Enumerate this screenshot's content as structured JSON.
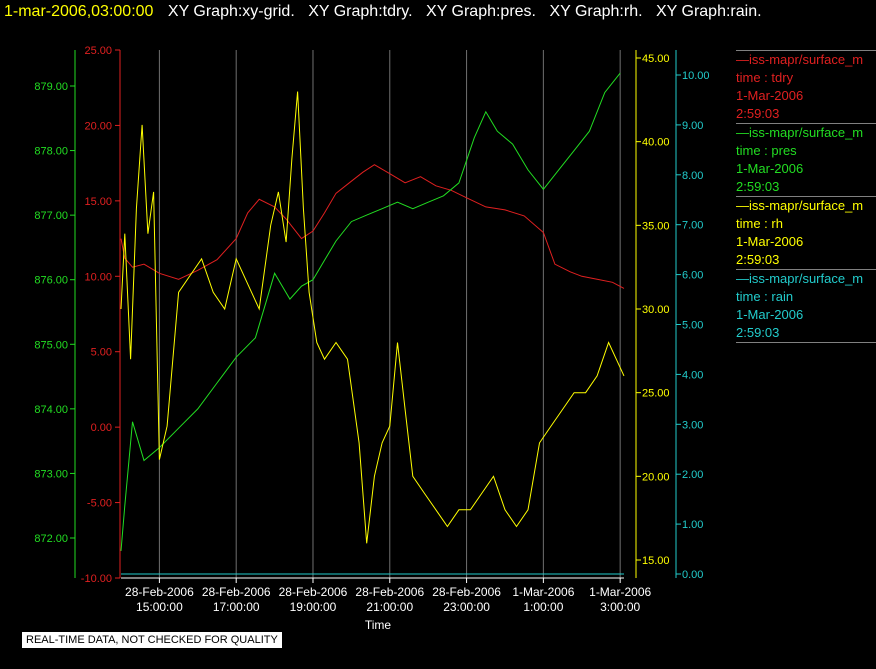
{
  "header": {
    "timestamp": "1-mar-2006,03:00:00",
    "titles": [
      "XY Graph:xy-grid.",
      "XY Graph:tdry.",
      "XY Graph:pres.",
      "XY Graph:rh.",
      "XY Graph:rain."
    ]
  },
  "legend": [
    {
      "name": "iss-mapr/surface_m",
      "field": "time : tdry",
      "date": "1-Mar-2006",
      "time": "2:59:03",
      "color": "#e02020"
    },
    {
      "name": "iss-mapr/surface_m",
      "field": "time : pres",
      "date": "1-Mar-2006",
      "time": "2:59:03",
      "color": "#22dd22"
    },
    {
      "name": "iss-mapr/surface_m",
      "field": "time : rh",
      "date": "1-Mar-2006",
      "time": "2:59:03",
      "color": "#ffff00"
    },
    {
      "name": "iss-mapr/surface_m",
      "field": "time : rain",
      "date": "1-Mar-2006",
      "time": "2:59:03",
      "color": "#22cccc"
    }
  ],
  "note": "REAL-TIME DATA, NOT CHECKED FOR QUALITY",
  "chart_data": {
    "type": "line",
    "xlabel": "Time",
    "x_ticks": [
      {
        "date": "28-Feb-2006",
        "time": "15:00:00"
      },
      {
        "date": "28-Feb-2006",
        "time": "17:00:00"
      },
      {
        "date": "28-Feb-2006",
        "time": "19:00:00"
      },
      {
        "date": "28-Feb-2006",
        "time": "21:00:00"
      },
      {
        "date": "28-Feb-2006",
        "time": "23:00:00"
      },
      {
        "date": "1-Mar-2006",
        "time": "1:00:00"
      },
      {
        "date": "1-Mar-2006",
        "time": "3:00:00"
      }
    ],
    "grid": "vertical",
    "axes": {
      "tdry": {
        "range": [
          -10,
          25
        ],
        "ticks": [
          "25.00",
          "20.00",
          "15.00",
          "10.00",
          "5.00",
          "0.00",
          "-5.00",
          "-10.00"
        ],
        "color": "#e02020"
      },
      "pres": {
        "range": [
          871.5,
          879.6
        ],
        "ticks": [
          "879.00",
          "878.00",
          "877.00",
          "876.00",
          "875.00",
          "874.00",
          "873.00",
          "872.00"
        ],
        "color": "#22dd22"
      },
      "rh": {
        "range": [
          14,
          45
        ],
        "ticks": [
          "45.00",
          "40.00",
          "35.00",
          "30.00",
          "25.00",
          "20.00",
          "15.00"
        ],
        "color": "#ffff00"
      },
      "rain": {
        "range": [
          0,
          10.5
        ],
        "ticks": [
          "10.00",
          "9.00",
          "8.00",
          "7.00",
          "6.00",
          "5.00",
          "4.00",
          "3.00",
          "2.00",
          "1.00",
          "0.00"
        ],
        "color": "#22cccc"
      }
    },
    "series": [
      {
        "key": "tdry",
        "color": "#e02020",
        "x_hours": [
          14.0,
          14.1,
          14.3,
          14.6,
          15.0,
          15.5,
          16.0,
          16.5,
          17.0,
          17.3,
          17.6,
          18.0,
          18.3,
          18.7,
          19.0,
          19.3,
          19.6,
          20.0,
          20.3,
          20.6,
          21.0,
          21.4,
          21.8,
          22.2,
          22.6,
          23.0,
          23.5,
          24.0,
          24.5,
          25.0,
          25.3,
          25.7,
          26.0,
          26.4,
          26.8,
          27.1
        ],
        "values": [
          12.5,
          11.2,
          10.6,
          10.8,
          10.2,
          9.8,
          10.4,
          11.1,
          12.5,
          14.2,
          15.1,
          14.6,
          13.8,
          12.5,
          13.0,
          14.2,
          15.5,
          16.3,
          16.9,
          17.4,
          16.8,
          16.2,
          16.6,
          16.0,
          15.7,
          15.2,
          14.6,
          14.4,
          14.0,
          12.9,
          10.8,
          10.3,
          10.0,
          9.8,
          9.6,
          9.2
        ]
      },
      {
        "key": "pres",
        "color": "#22dd22",
        "x_hours": [
          14.0,
          14.1,
          14.3,
          14.6,
          15.0,
          15.5,
          16.0,
          16.5,
          17.0,
          17.5,
          18.0,
          18.4,
          18.7,
          19.0,
          19.3,
          19.6,
          20.0,
          20.4,
          20.8,
          21.2,
          21.6,
          22.0,
          22.4,
          22.8,
          23.2,
          23.5,
          23.8,
          24.2,
          24.6,
          25.0,
          25.4,
          25.8,
          26.2,
          26.6,
          27.0
        ],
        "values": [
          871.8,
          872.5,
          873.8,
          873.2,
          873.4,
          873.7,
          874.0,
          874.4,
          874.8,
          875.1,
          876.1,
          875.7,
          875.9,
          876.0,
          876.3,
          876.6,
          876.9,
          877.0,
          877.1,
          877.2,
          877.1,
          877.2,
          877.3,
          877.5,
          878.2,
          878.6,
          878.3,
          878.1,
          877.7,
          877.4,
          877.7,
          878.0,
          878.3,
          878.9,
          879.2
        ]
      },
      {
        "key": "rh",
        "color": "#ffff00",
        "x_hours": [
          14.0,
          14.1,
          14.25,
          14.4,
          14.55,
          14.7,
          14.85,
          15.0,
          15.2,
          15.5,
          15.8,
          16.1,
          16.4,
          16.7,
          17.0,
          17.3,
          17.6,
          17.9,
          18.1,
          18.3,
          18.45,
          18.6,
          18.75,
          18.9,
          19.1,
          19.3,
          19.6,
          19.9,
          20.2,
          20.4,
          20.6,
          20.8,
          21.0,
          21.2,
          21.4,
          21.6,
          21.9,
          22.2,
          22.5,
          22.8,
          23.1,
          23.4,
          23.7,
          24.0,
          24.3,
          24.6,
          24.9,
          25.2,
          25.5,
          25.8,
          26.1,
          26.4,
          26.7,
          26.9,
          27.1
        ],
        "values": [
          30,
          34.5,
          27,
          36,
          41,
          34.5,
          37,
          21,
          23,
          31,
          32,
          33,
          31,
          30,
          33,
          31.5,
          30,
          35,
          37,
          34,
          39,
          43,
          36,
          31,
          28,
          27,
          28,
          27,
          22,
          16,
          20,
          22,
          23,
          28,
          24,
          20,
          19,
          18,
          17,
          18,
          18,
          19,
          20,
          18,
          17,
          18,
          22,
          23,
          24,
          25,
          25,
          26,
          28,
          27,
          26
        ]
      },
      {
        "key": "rain",
        "color": "#22cccc",
        "x_hours": [
          14.0,
          27.1
        ],
        "values": [
          0.0,
          0.0
        ]
      }
    ]
  }
}
